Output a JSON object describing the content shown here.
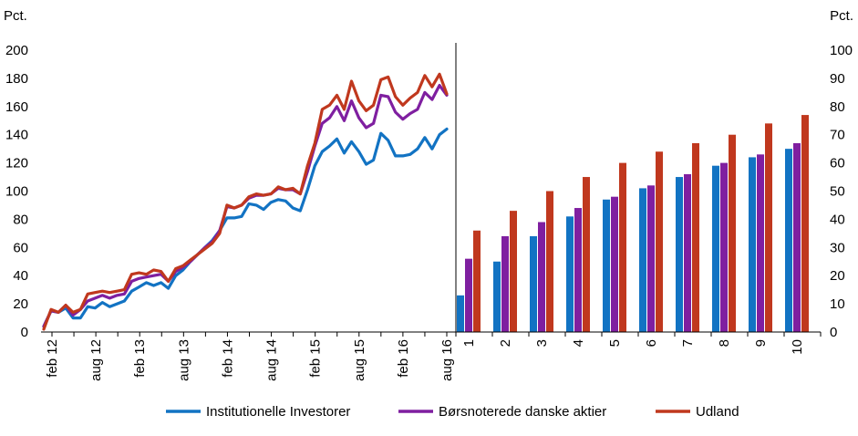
{
  "colors": {
    "institutionelle": "#1273c3",
    "borsnoterede": "#7f1fa0",
    "udland": "#c0381e",
    "axis": "#000000"
  },
  "chart_data": [
    {
      "type": "line",
      "unit_label": "Pct.",
      "ylim": [
        0,
        200
      ],
      "yticks": [
        0,
        20,
        40,
        60,
        80,
        100,
        120,
        140,
        160,
        180,
        200
      ],
      "x_tick_labels": [
        "feb 12",
        "aug 12",
        "feb 13",
        "aug 13",
        "feb 14",
        "aug 14",
        "feb 15",
        "aug 15",
        "feb 16",
        "aug 16"
      ],
      "grid": false,
      "series": [
        {
          "name": "Institutionelle Investorer",
          "color": "#1273c3",
          "values": [
            4,
            15,
            14,
            17,
            10,
            10,
            18,
            17,
            21,
            18,
            20,
            22,
            29,
            32,
            35,
            33,
            35,
            31,
            40,
            44,
            50,
            55,
            60,
            65,
            72,
            81,
            81,
            82,
            91,
            90,
            87,
            92,
            94,
            93,
            88,
            86,
            101,
            118,
            128,
            132,
            137,
            127,
            135,
            128,
            119,
            122,
            141,
            136,
            125,
            125,
            126,
            130,
            138,
            130,
            140,
            144
          ]
        },
        {
          "name": "Børsnoterede danske aktier",
          "color": "#7f1fa0",
          "values": [
            4,
            15,
            14,
            19,
            12,
            16,
            22,
            24,
            26,
            24,
            26,
            27,
            36,
            38,
            39,
            40,
            41,
            36,
            43,
            46,
            50,
            55,
            60,
            64,
            72,
            89,
            88,
            90,
            95,
            97,
            97,
            98,
            102,
            101,
            101,
            98,
            114,
            132,
            148,
            152,
            160,
            150,
            164,
            152,
            145,
            148,
            168,
            167,
            156,
            151,
            155,
            158,
            170,
            165,
            175,
            168
          ]
        },
        {
          "name": "Udland",
          "color": "#c0381e",
          "values": [
            2,
            16,
            14,
            19,
            14,
            16,
            27,
            28,
            29,
            28,
            29,
            30,
            41,
            42,
            41,
            44,
            43,
            36,
            45,
            47,
            51,
            55,
            59,
            63,
            70,
            90,
            88,
            90,
            96,
            98,
            97,
            98,
            103,
            101,
            102,
            98,
            118,
            134,
            158,
            161,
            168,
            158,
            178,
            164,
            157,
            161,
            179,
            181,
            167,
            161,
            166,
            170,
            182,
            174,
            183,
            169
          ]
        }
      ]
    },
    {
      "type": "bar",
      "unit_label": "Pct.",
      "ylim": [
        0,
        100
      ],
      "yticks": [
        0,
        10,
        20,
        30,
        40,
        50,
        60,
        70,
        80,
        90,
        100
      ],
      "categories": [
        "1",
        "2",
        "3",
        "4",
        "5",
        "6",
        "7",
        "8",
        "9",
        "10"
      ],
      "grid": false,
      "series": [
        {
          "name": "Institutionelle Investorer",
          "color": "#1273c3",
          "values": [
            13,
            25,
            34,
            41,
            47,
            51,
            55,
            59,
            62,
            65
          ]
        },
        {
          "name": "Børsnoterede danske aktier",
          "color": "#7f1fa0",
          "values": [
            26,
            34,
            39,
            44,
            48,
            52,
            56,
            60,
            63,
            67
          ]
        },
        {
          "name": "Udland",
          "color": "#c0381e",
          "values": [
            36,
            43,
            50,
            55,
            60,
            64,
            67,
            70,
            74,
            77
          ]
        }
      ]
    }
  ],
  "legend": {
    "placement": "bottom",
    "items": [
      "Institutionelle Investorer",
      "Børsnoterede danske aktier",
      "Udland"
    ]
  }
}
